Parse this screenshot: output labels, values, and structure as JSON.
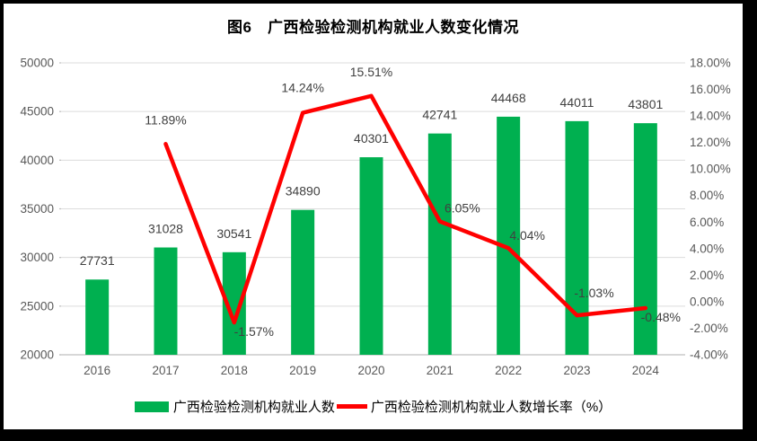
{
  "chart_data": {
    "type": "combo",
    "title": "图6　广西检验检测机构就业人数变化情况",
    "categories": [
      "2016",
      "2017",
      "2018",
      "2019",
      "2020",
      "2021",
      "2022",
      "2023",
      "2024"
    ],
    "series": [
      {
        "name": "广西检验检测机构就业人数",
        "type": "bar",
        "axis": "left",
        "color": "#00B050",
        "values": [
          27731,
          31028,
          30541,
          34890,
          40301,
          42741,
          44468,
          44011,
          43801
        ],
        "labels": [
          "27731",
          "31028",
          "30541",
          "34890",
          "40301",
          "42741",
          "44468",
          "44011",
          "43801"
        ]
      },
      {
        "name": "广西检验检测机构就业人数增长率（%）",
        "type": "line",
        "axis": "right",
        "color": "#FF0000",
        "values": [
          null,
          11.89,
          -1.57,
          14.24,
          15.51,
          6.05,
          4.04,
          -1.03,
          -0.48
        ],
        "labels": [
          null,
          "11.89%",
          "-1.57%",
          "14.24%",
          "15.51%",
          "6.05%",
          "4.04%",
          "-1.03%",
          "-0.48%"
        ]
      }
    ],
    "left_axis": {
      "min": 20000,
      "max": 50000,
      "step": 5000,
      "tick_labels": [
        "20000",
        "25000",
        "30000",
        "35000",
        "40000",
        "45000",
        "50000"
      ]
    },
    "right_axis": {
      "min": -4,
      "max": 18,
      "step": 2,
      "tick_labels": [
        "-4.00%",
        "-2.00%",
        "0.00%",
        "2.00%",
        "4.00%",
        "6.00%",
        "8.00%",
        "10.00%",
        "12.00%",
        "14.00%",
        "16.00%",
        "18.00%"
      ]
    },
    "grid": "horizontal",
    "legend_position": "bottom"
  },
  "colors": {
    "bar": "#00B050",
    "line": "#FF0000",
    "axis_text": "#595959",
    "data_label_text": "#404040",
    "gridline": "#DCDCDC",
    "tick": "#BFBFBF",
    "frame": "#000000",
    "background": "#FFFFFF"
  }
}
